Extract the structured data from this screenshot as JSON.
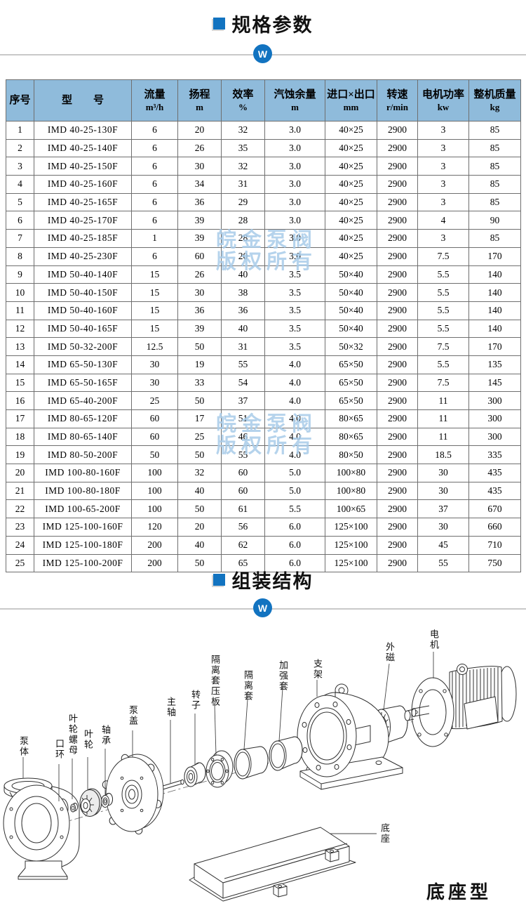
{
  "sections": [
    {
      "id": "specs",
      "title": "规格参数"
    },
    {
      "id": "assembly",
      "title": "组装结构"
    }
  ],
  "badge": {
    "letter": "W",
    "color": "#1273c0"
  },
  "watermark": {
    "line1": "皖金泵阀",
    "line2": "版权所有",
    "color": "#a9cce9"
  },
  "table": {
    "header_bg": "#8fbbdb",
    "columns": [
      {
        "title": "序号",
        "unit": ""
      },
      {
        "title": "型　　号",
        "unit": ""
      },
      {
        "title": "流量",
        "unit": "m³/h"
      },
      {
        "title": "扬程",
        "unit": "m"
      },
      {
        "title": "效率",
        "unit": "%"
      },
      {
        "title": "汽蚀余量",
        "unit": "m"
      },
      {
        "title": "进口×出口",
        "unit": "mm"
      },
      {
        "title": "转速",
        "unit": "r/min"
      },
      {
        "title": "电机功率",
        "unit": "kw"
      },
      {
        "title": "整机质量",
        "unit": "kg"
      }
    ],
    "rows": [
      [
        "1",
        "IMD 40-25-130F",
        "6",
        "20",
        "32",
        "3.0",
        "40×25",
        "2900",
        "3",
        "85"
      ],
      [
        "2",
        "IMD 40-25-140F",
        "6",
        "26",
        "35",
        "3.0",
        "40×25",
        "2900",
        "3",
        "85"
      ],
      [
        "3",
        "IMD 40-25-150F",
        "6",
        "30",
        "32",
        "3.0",
        "40×25",
        "2900",
        "3",
        "85"
      ],
      [
        "4",
        "IMD 40-25-160F",
        "6",
        "34",
        "31",
        "3.0",
        "40×25",
        "2900",
        "3",
        "85"
      ],
      [
        "5",
        "IMD 40-25-165F",
        "6",
        "36",
        "29",
        "3.0",
        "40×25",
        "2900",
        "3",
        "85"
      ],
      [
        "6",
        "IMD 40-25-170F",
        "6",
        "39",
        "28",
        "3.0",
        "40×25",
        "2900",
        "4",
        "90"
      ],
      [
        "7",
        "IMD 40-25-185F",
        "1",
        "39",
        "28",
        "3.0",
        "40×25",
        "2900",
        "3",
        "85"
      ],
      [
        "8",
        "IMD 40-25-230F",
        "6",
        "60",
        "20",
        "3.0",
        "40×25",
        "2900",
        "7.5",
        "170"
      ],
      [
        "9",
        "IMD 50-40-140F",
        "15",
        "26",
        "40",
        "3.5",
        "50×40",
        "2900",
        "5.5",
        "140"
      ],
      [
        "10",
        "IMD 50-40-150F",
        "15",
        "30",
        "38",
        "3.5",
        "50×40",
        "2900",
        "5.5",
        "140"
      ],
      [
        "11",
        "IMD 50-40-160F",
        "15",
        "36",
        "36",
        "3.5",
        "50×40",
        "2900",
        "5.5",
        "140"
      ],
      [
        "12",
        "IMD 50-40-165F",
        "15",
        "39",
        "40",
        "3.5",
        "50×40",
        "2900",
        "5.5",
        "140"
      ],
      [
        "13",
        "IMD 50-32-200F",
        "12.5",
        "50",
        "31",
        "3.5",
        "50×32",
        "2900",
        "7.5",
        "170"
      ],
      [
        "14",
        "IMD 65-50-130F",
        "30",
        "19",
        "55",
        "4.0",
        "65×50",
        "2900",
        "5.5",
        "135"
      ],
      [
        "15",
        "IMD 65-50-165F",
        "30",
        "33",
        "54",
        "4.0",
        "65×50",
        "2900",
        "7.5",
        "145"
      ],
      [
        "16",
        "IMD 65-40-200F",
        "25",
        "50",
        "37",
        "4.0",
        "65×50",
        "2900",
        "11",
        "300"
      ],
      [
        "17",
        "IMD 80-65-120F",
        "60",
        "17",
        "51",
        "4.0",
        "80×65",
        "2900",
        "11",
        "300"
      ],
      [
        "18",
        "IMD 80-65-140F",
        "60",
        "25",
        "46",
        "4.0",
        "80×65",
        "2900",
        "11",
        "300"
      ],
      [
        "19",
        "IMD 80-50-200F",
        "50",
        "50",
        "55",
        "4.0",
        "80×50",
        "2900",
        "18.5",
        "335"
      ],
      [
        "20",
        "IMD 100-80-160F",
        "100",
        "32",
        "60",
        "5.0",
        "100×80",
        "2900",
        "30",
        "435"
      ],
      [
        "21",
        "IMD 100-80-180F",
        "100",
        "40",
        "60",
        "5.0",
        "100×80",
        "2900",
        "30",
        "435"
      ],
      [
        "22",
        "IMD 100-65-200F",
        "100",
        "50",
        "61",
        "5.5",
        "100×65",
        "2900",
        "37",
        "670"
      ],
      [
        "23",
        "IMD 125-100-160F",
        "120",
        "20",
        "56",
        "6.0",
        "125×100",
        "2900",
        "30",
        "660"
      ],
      [
        "24",
        "IMD 125-100-180F",
        "200",
        "40",
        "62",
        "6.0",
        "125×100",
        "2900",
        "45",
        "710"
      ],
      [
        "25",
        "IMD 125-100-200F",
        "200",
        "50",
        "65",
        "6.0",
        "125×100",
        "2900",
        "55",
        "750"
      ]
    ]
  },
  "diagram": {
    "labels": [
      "泵体",
      "口环",
      "叶轮螺母",
      "叶轮",
      "轴承",
      "泵盖",
      "主轴",
      "转子",
      "隔离套压板",
      "隔离套",
      "加强套",
      "支架",
      "外磁",
      "电机",
      "底座"
    ],
    "caption": "底座型"
  }
}
